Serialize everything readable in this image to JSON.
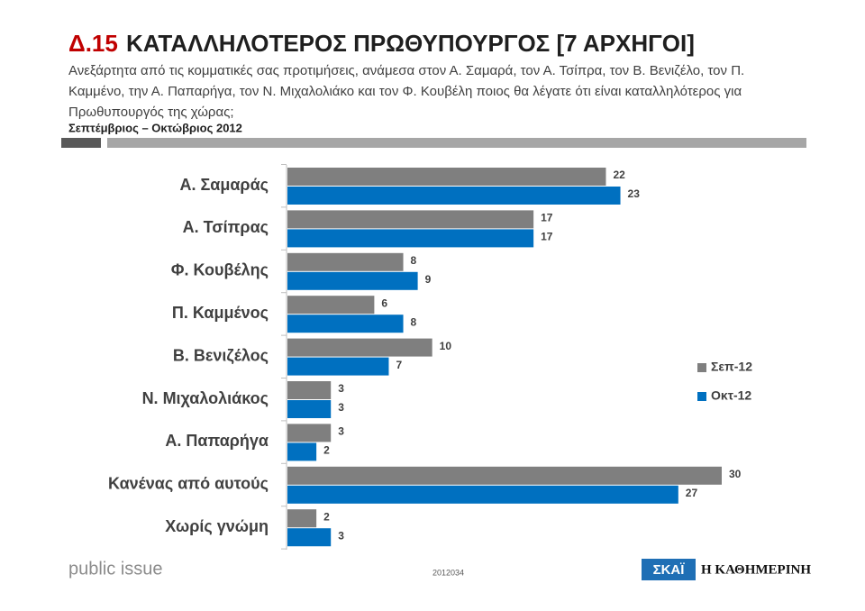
{
  "chart_data": {
    "type": "bar",
    "orientation": "horizontal",
    "title_code": "Δ.15",
    "title": "ΚΑΤΑΛΛΗΛΟΤΕΡΟΣ ΠΡΩΘΥΠΟΥΡΓΟΣ [7 ΑΡΧΗΓΟΙ]",
    "subtitle": "Ανεξάρτητα από τις κομματικές σας προτιμήσεις, ανάμεσα στον Α. Σαμαρά, τον Α. Τσίπρα, τον Β. Βενιζέλο, τον Π. Καμμένο, την Α. Παπαρήγα, τον Ν. Μιχαλολιάκο και τον Φ. Κουβέλη ποιος θα λέγατε ότι είναι καταλληλότερος για Πρωθυπουργός της χώρας;",
    "period": "Σεπτέμβριος – Οκτώβριος 2012",
    "categories": [
      "Α. Σαμαράς",
      "Α. Τσίπρας",
      "Φ. Κουβέλης",
      "Π. Καμμένος",
      "Β. Βενιζέλος",
      "Ν. Μιχαλολιάκος",
      "Α. Παπαρήγα",
      "Κανένας από αυτούς",
      "Χωρίς γνώμη"
    ],
    "series": [
      {
        "name": "Σεπ-12",
        "color": "#7f7f7f",
        "values": [
          22,
          17,
          8,
          6,
          10,
          3,
          3,
          30,
          2
        ]
      },
      {
        "name": "Οκτ-12",
        "color": "#0070c0",
        "values": [
          23,
          17,
          9,
          8,
          7,
          3,
          2,
          27,
          3
        ]
      }
    ],
    "legend": "right",
    "footer": {
      "brand": "public issue",
      "code": "2012034",
      "logos": [
        "ΣΚΑΪ",
        "Η ΚΑΘΗΜΕΡΙΝΗ"
      ]
    }
  }
}
